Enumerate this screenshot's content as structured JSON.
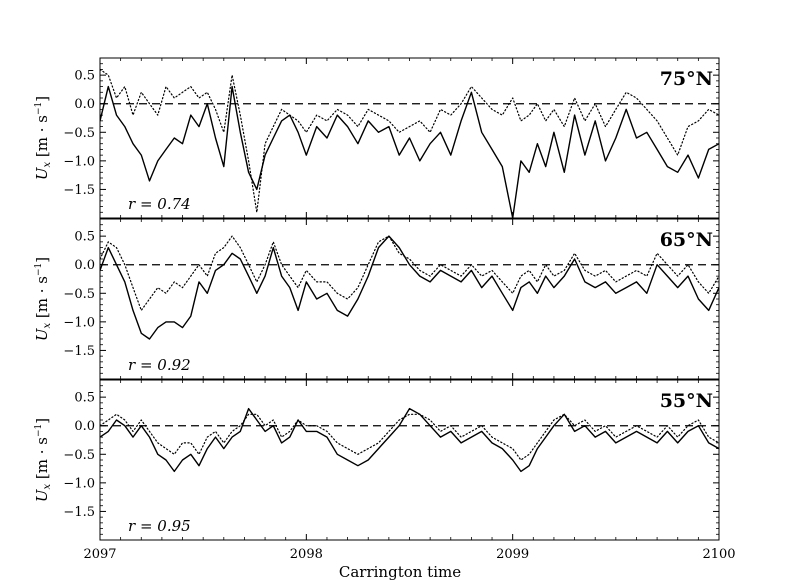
{
  "chart_data": {
    "type": "line",
    "xlabel": "Carrington time",
    "xlim": [
      2097,
      2100
    ],
    "x_ticks": [
      "2097",
      "2098",
      "2099",
      "2100"
    ],
    "ylim": [
      -2.0,
      0.8
    ],
    "y_ticks": [
      "0.5",
      "0.0",
      "−0.5",
      "−1.0",
      "−1.5"
    ],
    "y_tick_values": [
      0.5,
      0.0,
      -0.5,
      -1.0,
      -1.5
    ],
    "ylabel_main": "U",
    "ylabel_sub": "x",
    "ylabel_units": " [m · s",
    "ylabel_sup": "−1",
    "ylabel_close": "]",
    "reference_line": 0.0,
    "panels": [
      {
        "label": "75°N",
        "correlation": "r = 0.74",
        "series": [
          {
            "style": "solid",
            "x": [
              2097.0,
              2097.04,
              2097.08,
              2097.12,
              2097.16,
              2097.2,
              2097.24,
              2097.28,
              2097.32,
              2097.36,
              2097.4,
              2097.44,
              2097.48,
              2097.52,
              2097.56,
              2097.6,
              2097.64,
              2097.68,
              2097.72,
              2097.76,
              2097.8,
              2097.84,
              2097.88,
              2097.92,
              2097.96,
              2098.0,
              2098.05,
              2098.1,
              2098.15,
              2098.2,
              2098.25,
              2098.3,
              2098.35,
              2098.4,
              2098.45,
              2098.5,
              2098.55,
              2098.6,
              2098.65,
              2098.7,
              2098.75,
              2098.8,
              2098.85,
              2098.9,
              2098.95,
              2099.0,
              2099.04,
              2099.08,
              2099.12,
              2099.16,
              2099.2,
              2099.25,
              2099.3,
              2099.35,
              2099.4,
              2099.45,
              2099.5,
              2099.55,
              2099.6,
              2099.65,
              2099.7,
              2099.75,
              2099.8,
              2099.85,
              2099.9,
              2099.95,
              2100.0
            ],
            "y": [
              -0.3,
              0.3,
              -0.2,
              -0.4,
              -0.7,
              -0.9,
              -1.35,
              -1.0,
              -0.8,
              -0.6,
              -0.7,
              -0.2,
              -0.4,
              0.0,
              -0.6,
              -1.1,
              0.3,
              -0.5,
              -1.2,
              -1.5,
              -0.9,
              -0.6,
              -0.3,
              -0.2,
              -0.5,
              -0.9,
              -0.4,
              -0.6,
              -0.2,
              -0.4,
              -0.7,
              -0.3,
              -0.5,
              -0.4,
              -0.9,
              -0.6,
              -1.0,
              -0.7,
              -0.5,
              -0.9,
              -0.3,
              0.2,
              -0.5,
              -0.8,
              -1.1,
              -2.0,
              -1.0,
              -1.2,
              -0.7,
              -1.1,
              -0.5,
              -1.2,
              -0.2,
              -0.9,
              -0.3,
              -1.0,
              -0.6,
              -0.1,
              -0.6,
              -0.5,
              -0.8,
              -1.1,
              -1.2,
              -0.9,
              -1.3,
              -0.8,
              -0.7
            ]
          },
          {
            "style": "dotted",
            "x": [
              2097.0,
              2097.04,
              2097.08,
              2097.12,
              2097.16,
              2097.2,
              2097.24,
              2097.28,
              2097.32,
              2097.36,
              2097.4,
              2097.44,
              2097.48,
              2097.52,
              2097.56,
              2097.6,
              2097.64,
              2097.68,
              2097.72,
              2097.76,
              2097.8,
              2097.84,
              2097.88,
              2097.92,
              2097.96,
              2098.0,
              2098.05,
              2098.1,
              2098.15,
              2098.2,
              2098.25,
              2098.3,
              2098.35,
              2098.4,
              2098.45,
              2098.5,
              2098.55,
              2098.6,
              2098.65,
              2098.7,
              2098.75,
              2098.8,
              2098.85,
              2098.9,
              2098.95,
              2099.0,
              2099.04,
              2099.08,
              2099.12,
              2099.16,
              2099.2,
              2099.25,
              2099.3,
              2099.35,
              2099.4,
              2099.45,
              2099.5,
              2099.55,
              2099.6,
              2099.65,
              2099.7,
              2099.75,
              2099.8,
              2099.85,
              2099.9,
              2099.95,
              2100.0
            ],
            "y": [
              0.6,
              0.5,
              0.1,
              0.3,
              -0.2,
              0.2,
              0.0,
              -0.2,
              0.3,
              0.1,
              0.2,
              0.3,
              0.1,
              0.2,
              -0.1,
              -0.5,
              0.5,
              -0.2,
              -1.0,
              -1.9,
              -0.7,
              -0.4,
              -0.1,
              -0.2,
              -0.3,
              -0.5,
              -0.2,
              -0.3,
              -0.1,
              -0.2,
              -0.4,
              -0.1,
              -0.2,
              -0.3,
              -0.5,
              -0.4,
              -0.3,
              -0.5,
              -0.1,
              -0.2,
              0.0,
              0.3,
              0.1,
              -0.1,
              -0.2,
              0.1,
              -0.3,
              -0.2,
              0.0,
              -0.3,
              -0.1,
              -0.4,
              0.1,
              -0.3,
              0.0,
              -0.4,
              -0.1,
              0.2,
              0.1,
              -0.1,
              -0.3,
              -0.6,
              -0.9,
              -0.4,
              -0.3,
              -0.1,
              -0.2
            ]
          }
        ]
      },
      {
        "label": "65°N",
        "correlation": "r = 0.92",
        "series": [
          {
            "style": "solid",
            "x": [
              2097.0,
              2097.04,
              2097.08,
              2097.12,
              2097.16,
              2097.2,
              2097.24,
              2097.28,
              2097.32,
              2097.36,
              2097.4,
              2097.44,
              2097.48,
              2097.52,
              2097.56,
              2097.6,
              2097.64,
              2097.68,
              2097.72,
              2097.76,
              2097.8,
              2097.84,
              2097.88,
              2097.92,
              2097.96,
              2098.0,
              2098.05,
              2098.1,
              2098.15,
              2098.2,
              2098.25,
              2098.3,
              2098.35,
              2098.4,
              2098.45,
              2098.5,
              2098.55,
              2098.6,
              2098.65,
              2098.7,
              2098.75,
              2098.8,
              2098.85,
              2098.9,
              2098.95,
              2099.0,
              2099.04,
              2099.08,
              2099.12,
              2099.16,
              2099.2,
              2099.25,
              2099.3,
              2099.35,
              2099.4,
              2099.45,
              2099.5,
              2099.55,
              2099.6,
              2099.65,
              2099.7,
              2099.75,
              2099.8,
              2099.85,
              2099.9,
              2099.95,
              2100.0
            ],
            "y": [
              -0.1,
              0.3,
              0.0,
              -0.3,
              -0.8,
              -1.2,
              -1.3,
              -1.1,
              -1.0,
              -1.0,
              -1.1,
              -0.9,
              -0.3,
              -0.5,
              -0.1,
              0.0,
              0.2,
              0.1,
              -0.2,
              -0.5,
              -0.2,
              0.3,
              -0.2,
              -0.4,
              -0.8,
              -0.3,
              -0.6,
              -0.5,
              -0.8,
              -0.9,
              -0.6,
              -0.2,
              0.3,
              0.5,
              0.3,
              0.0,
              -0.2,
              -0.3,
              -0.1,
              -0.2,
              -0.3,
              -0.1,
              -0.4,
              -0.2,
              -0.5,
              -0.8,
              -0.4,
              -0.3,
              -0.5,
              -0.2,
              -0.4,
              -0.2,
              0.1,
              -0.3,
              -0.4,
              -0.3,
              -0.5,
              -0.4,
              -0.3,
              -0.5,
              0.0,
              -0.2,
              -0.4,
              -0.2,
              -0.6,
              -0.8,
              -0.4
            ]
          },
          {
            "style": "dotted",
            "x": [
              2097.0,
              2097.04,
              2097.08,
              2097.12,
              2097.16,
              2097.2,
              2097.24,
              2097.28,
              2097.32,
              2097.36,
              2097.4,
              2097.44,
              2097.48,
              2097.52,
              2097.56,
              2097.6,
              2097.64,
              2097.68,
              2097.72,
              2097.76,
              2097.8,
              2097.84,
              2097.88,
              2097.92,
              2097.96,
              2098.0,
              2098.05,
              2098.1,
              2098.15,
              2098.2,
              2098.25,
              2098.3,
              2098.35,
              2098.4,
              2098.45,
              2098.5,
              2098.55,
              2098.6,
              2098.65,
              2098.7,
              2098.75,
              2098.8,
              2098.85,
              2098.9,
              2098.95,
              2099.0,
              2099.04,
              2099.08,
              2099.12,
              2099.16,
              2099.2,
              2099.25,
              2099.3,
              2099.35,
              2099.4,
              2099.45,
              2099.5,
              2099.55,
              2099.6,
              2099.65,
              2099.7,
              2099.75,
              2099.8,
              2099.85,
              2099.9,
              2099.95,
              2100.0
            ],
            "y": [
              0.1,
              0.4,
              0.3,
              0.0,
              -0.4,
              -0.8,
              -0.6,
              -0.4,
              -0.5,
              -0.3,
              -0.4,
              -0.2,
              0.0,
              -0.2,
              0.2,
              0.3,
              0.5,
              0.3,
              0.0,
              -0.3,
              0.0,
              0.4,
              0.0,
              -0.2,
              -0.4,
              -0.1,
              -0.3,
              -0.3,
              -0.5,
              -0.6,
              -0.4,
              0.0,
              0.4,
              0.5,
              0.2,
              0.1,
              -0.1,
              -0.2,
              0.0,
              -0.1,
              -0.2,
              0.0,
              -0.2,
              -0.1,
              -0.3,
              -0.5,
              -0.2,
              -0.1,
              -0.3,
              0.0,
              -0.2,
              -0.1,
              0.2,
              -0.1,
              -0.2,
              -0.1,
              -0.3,
              -0.2,
              -0.1,
              -0.2,
              0.2,
              0.0,
              -0.2,
              0.0,
              -0.3,
              -0.5,
              -0.2
            ]
          }
        ]
      },
      {
        "label": "55°N",
        "correlation": "r = 0.95",
        "series": [
          {
            "style": "solid",
            "x": [
              2097.0,
              2097.04,
              2097.08,
              2097.12,
              2097.16,
              2097.2,
              2097.24,
              2097.28,
              2097.32,
              2097.36,
              2097.4,
              2097.44,
              2097.48,
              2097.52,
              2097.56,
              2097.6,
              2097.64,
              2097.68,
              2097.72,
              2097.76,
              2097.8,
              2097.84,
              2097.88,
              2097.92,
              2097.96,
              2098.0,
              2098.05,
              2098.1,
              2098.15,
              2098.2,
              2098.25,
              2098.3,
              2098.35,
              2098.4,
              2098.45,
              2098.5,
              2098.55,
              2098.6,
              2098.65,
              2098.7,
              2098.75,
              2098.8,
              2098.85,
              2098.9,
              2098.95,
              2099.0,
              2099.04,
              2099.08,
              2099.12,
              2099.16,
              2099.2,
              2099.25,
              2099.3,
              2099.35,
              2099.4,
              2099.45,
              2099.5,
              2099.55,
              2099.6,
              2099.65,
              2099.7,
              2099.75,
              2099.8,
              2099.85,
              2099.9,
              2099.95,
              2100.0
            ],
            "y": [
              -0.2,
              -0.1,
              0.1,
              0.0,
              -0.2,
              0.0,
              -0.2,
              -0.5,
              -0.6,
              -0.8,
              -0.6,
              -0.5,
              -0.7,
              -0.4,
              -0.2,
              -0.4,
              -0.2,
              -0.1,
              0.3,
              0.1,
              -0.1,
              0.0,
              -0.3,
              -0.2,
              0.1,
              -0.1,
              -0.1,
              -0.2,
              -0.5,
              -0.6,
              -0.7,
              -0.6,
              -0.4,
              -0.2,
              0.0,
              0.3,
              0.2,
              0.0,
              -0.2,
              -0.1,
              -0.3,
              -0.2,
              -0.1,
              -0.3,
              -0.4,
              -0.6,
              -0.8,
              -0.7,
              -0.4,
              -0.2,
              0.0,
              0.2,
              -0.1,
              0.0,
              -0.2,
              -0.1,
              -0.3,
              -0.2,
              -0.1,
              -0.2,
              -0.3,
              -0.1,
              -0.3,
              -0.1,
              0.0,
              -0.3,
              -0.4
            ]
          },
          {
            "style": "dotted",
            "x": [
              2097.0,
              2097.04,
              2097.08,
              2097.12,
              2097.16,
              2097.2,
              2097.24,
              2097.28,
              2097.32,
              2097.36,
              2097.4,
              2097.44,
              2097.48,
              2097.52,
              2097.56,
              2097.6,
              2097.64,
              2097.68,
              2097.72,
              2097.76,
              2097.8,
              2097.84,
              2097.88,
              2097.92,
              2097.96,
              2098.0,
              2098.05,
              2098.1,
              2098.15,
              2098.2,
              2098.25,
              2098.3,
              2098.35,
              2098.4,
              2098.45,
              2098.5,
              2098.55,
              2098.6,
              2098.65,
              2098.7,
              2098.75,
              2098.8,
              2098.85,
              2098.9,
              2098.95,
              2099.0,
              2099.04,
              2099.08,
              2099.12,
              2099.16,
              2099.2,
              2099.25,
              2099.3,
              2099.35,
              2099.4,
              2099.45,
              2099.5,
              2099.55,
              2099.6,
              2099.65,
              2099.7,
              2099.75,
              2099.8,
              2099.85,
              2099.9,
              2099.95,
              2100.0
            ],
            "y": [
              0.0,
              0.1,
              0.2,
              0.1,
              -0.1,
              0.1,
              -0.1,
              -0.3,
              -0.4,
              -0.5,
              -0.3,
              -0.3,
              -0.5,
              -0.2,
              -0.1,
              -0.3,
              -0.1,
              0.0,
              0.2,
              0.2,
              0.0,
              0.1,
              -0.2,
              -0.1,
              0.1,
              0.0,
              0.0,
              -0.1,
              -0.3,
              -0.4,
              -0.5,
              -0.4,
              -0.3,
              -0.1,
              0.1,
              0.2,
              0.2,
              0.1,
              -0.1,
              0.0,
              -0.2,
              -0.1,
              0.0,
              -0.2,
              -0.3,
              -0.4,
              -0.6,
              -0.5,
              -0.3,
              -0.1,
              0.1,
              0.2,
              0.0,
              0.1,
              -0.1,
              0.0,
              -0.2,
              -0.1,
              0.0,
              -0.1,
              -0.2,
              0.0,
              -0.2,
              0.0,
              0.1,
              -0.2,
              -0.3
            ]
          }
        ]
      }
    ]
  }
}
